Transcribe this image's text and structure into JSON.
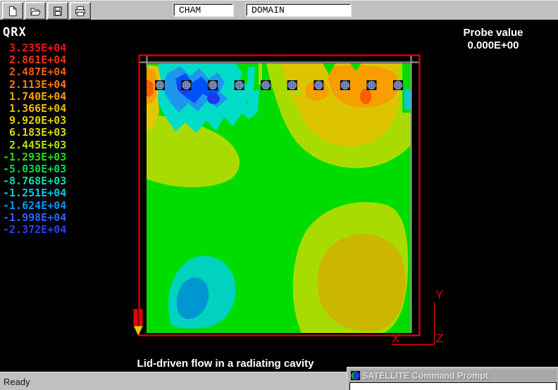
{
  "toolbar": {
    "buttons": [
      {
        "name": "new",
        "icon": "new-document-icon"
      },
      {
        "name": "open",
        "icon": "open-folder-icon"
      },
      {
        "name": "save",
        "icon": "save-floppy-icon"
      },
      {
        "name": "print",
        "icon": "print-icon"
      }
    ],
    "fields": [
      {
        "name": "cham",
        "value": "CHAM"
      },
      {
        "name": "domain",
        "value": "DOMAIN"
      }
    ]
  },
  "legend": {
    "title": "QRX",
    "entries": [
      {
        "value": "3.235E+04",
        "color": "#f21414"
      },
      {
        "value": "2.861E+04",
        "color": "#f43506"
      },
      {
        "value": "2.487E+04",
        "color": "#f85c00"
      },
      {
        "value": "2.113E+04",
        "color": "#fb7b00"
      },
      {
        "value": "1.740E+04",
        "color": "#f9a000"
      },
      {
        "value": "1.366E+04",
        "color": "#edb900"
      },
      {
        "value": "9.920E+03",
        "color": "#e2cf00"
      },
      {
        "value": "6.183E+03",
        "color": "#d8d800"
      },
      {
        "value": "2.445E+03",
        "color": "#b2e000"
      },
      {
        "value": "-1.293E+03",
        "color": "#1ce01c"
      },
      {
        "value": "-5.030E+03",
        "color": "#00d655"
      },
      {
        "value": "-8.768E+03",
        "color": "#00e0ac"
      },
      {
        "value": "-1.251E+04",
        "color": "#00c9e2"
      },
      {
        "value": "-1.624E+04",
        "color": "#0098f8"
      },
      {
        "value": "-1.998E+04",
        "color": "#2f62ff"
      },
      {
        "value": "-2.372E+04",
        "color": "#2b3ef8"
      }
    ]
  },
  "probe": {
    "label": "Probe value",
    "value": "0.000E+00"
  },
  "plot": {
    "caption": "Lid-driven flow in a radiating cavity",
    "axis": {
      "x": "X",
      "y": "Y",
      "z": "Z"
    },
    "markers": {
      "count": 10
    },
    "frame_color": "#e60000"
  },
  "statusbar": {
    "text": "Ready"
  },
  "taskbar_window": {
    "title": "SATELLITE Command Prompt",
    "icon": "satellite-icon"
  }
}
